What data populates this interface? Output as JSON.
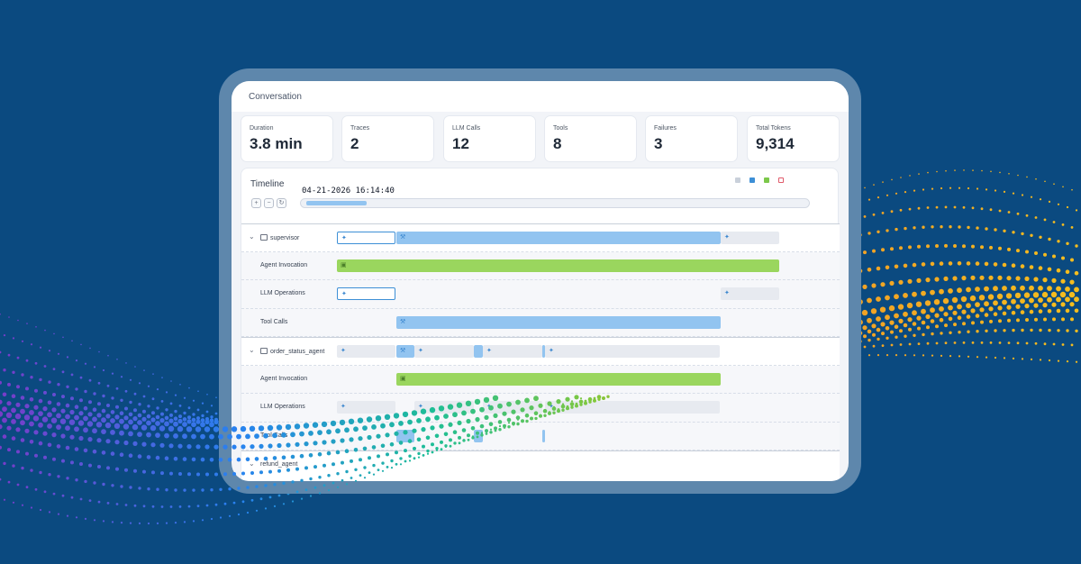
{
  "conversation": {
    "title": "Conversation"
  },
  "stats": [
    {
      "label": "Duration",
      "value": "3.8 min"
    },
    {
      "label": "Traces",
      "value": "2"
    },
    {
      "label": "LLM Calls",
      "value": "12"
    },
    {
      "label": "Tools",
      "value": "8"
    },
    {
      "label": "Failures",
      "value": "3"
    },
    {
      "label": "Total Tokens",
      "value": "9,314"
    }
  ],
  "timeline": {
    "title": "Timeline",
    "timestamp": "04-21-2026 16:14:40",
    "zoom_in_icon": "zoom-in-icon",
    "zoom_out_icon": "zoom-out-icon",
    "reset_icon": "reset-icon",
    "scrub_position": 0.12,
    "legend_colors": [
      "#c9d0da",
      "#3d8fd6",
      "#7cc84a",
      "#e05a6a"
    ]
  },
  "rows": [
    {
      "label": "supervisor",
      "type": "group",
      "icon": "agent-icon"
    },
    {
      "label": "Agent Invocation",
      "type": "sub"
    },
    {
      "label": "LLM Operations",
      "type": "sub"
    },
    {
      "label": "Tool Calls",
      "type": "sub"
    },
    {
      "label": "order_status_agent",
      "type": "group",
      "icon": "agent-icon"
    },
    {
      "label": "Agent Invocation",
      "type": "sub"
    },
    {
      "label": "LLM Operations",
      "type": "sub"
    },
    {
      "label": "Tool Calls",
      "type": "sub"
    }
  ],
  "partial_row_label": "refund_agent",
  "colors": {
    "background": "#0b4a80",
    "llm": "#3d8fd6",
    "tool": "#92c4f0",
    "agent": "#9ad65e",
    "idle": "#e7eaf0"
  }
}
